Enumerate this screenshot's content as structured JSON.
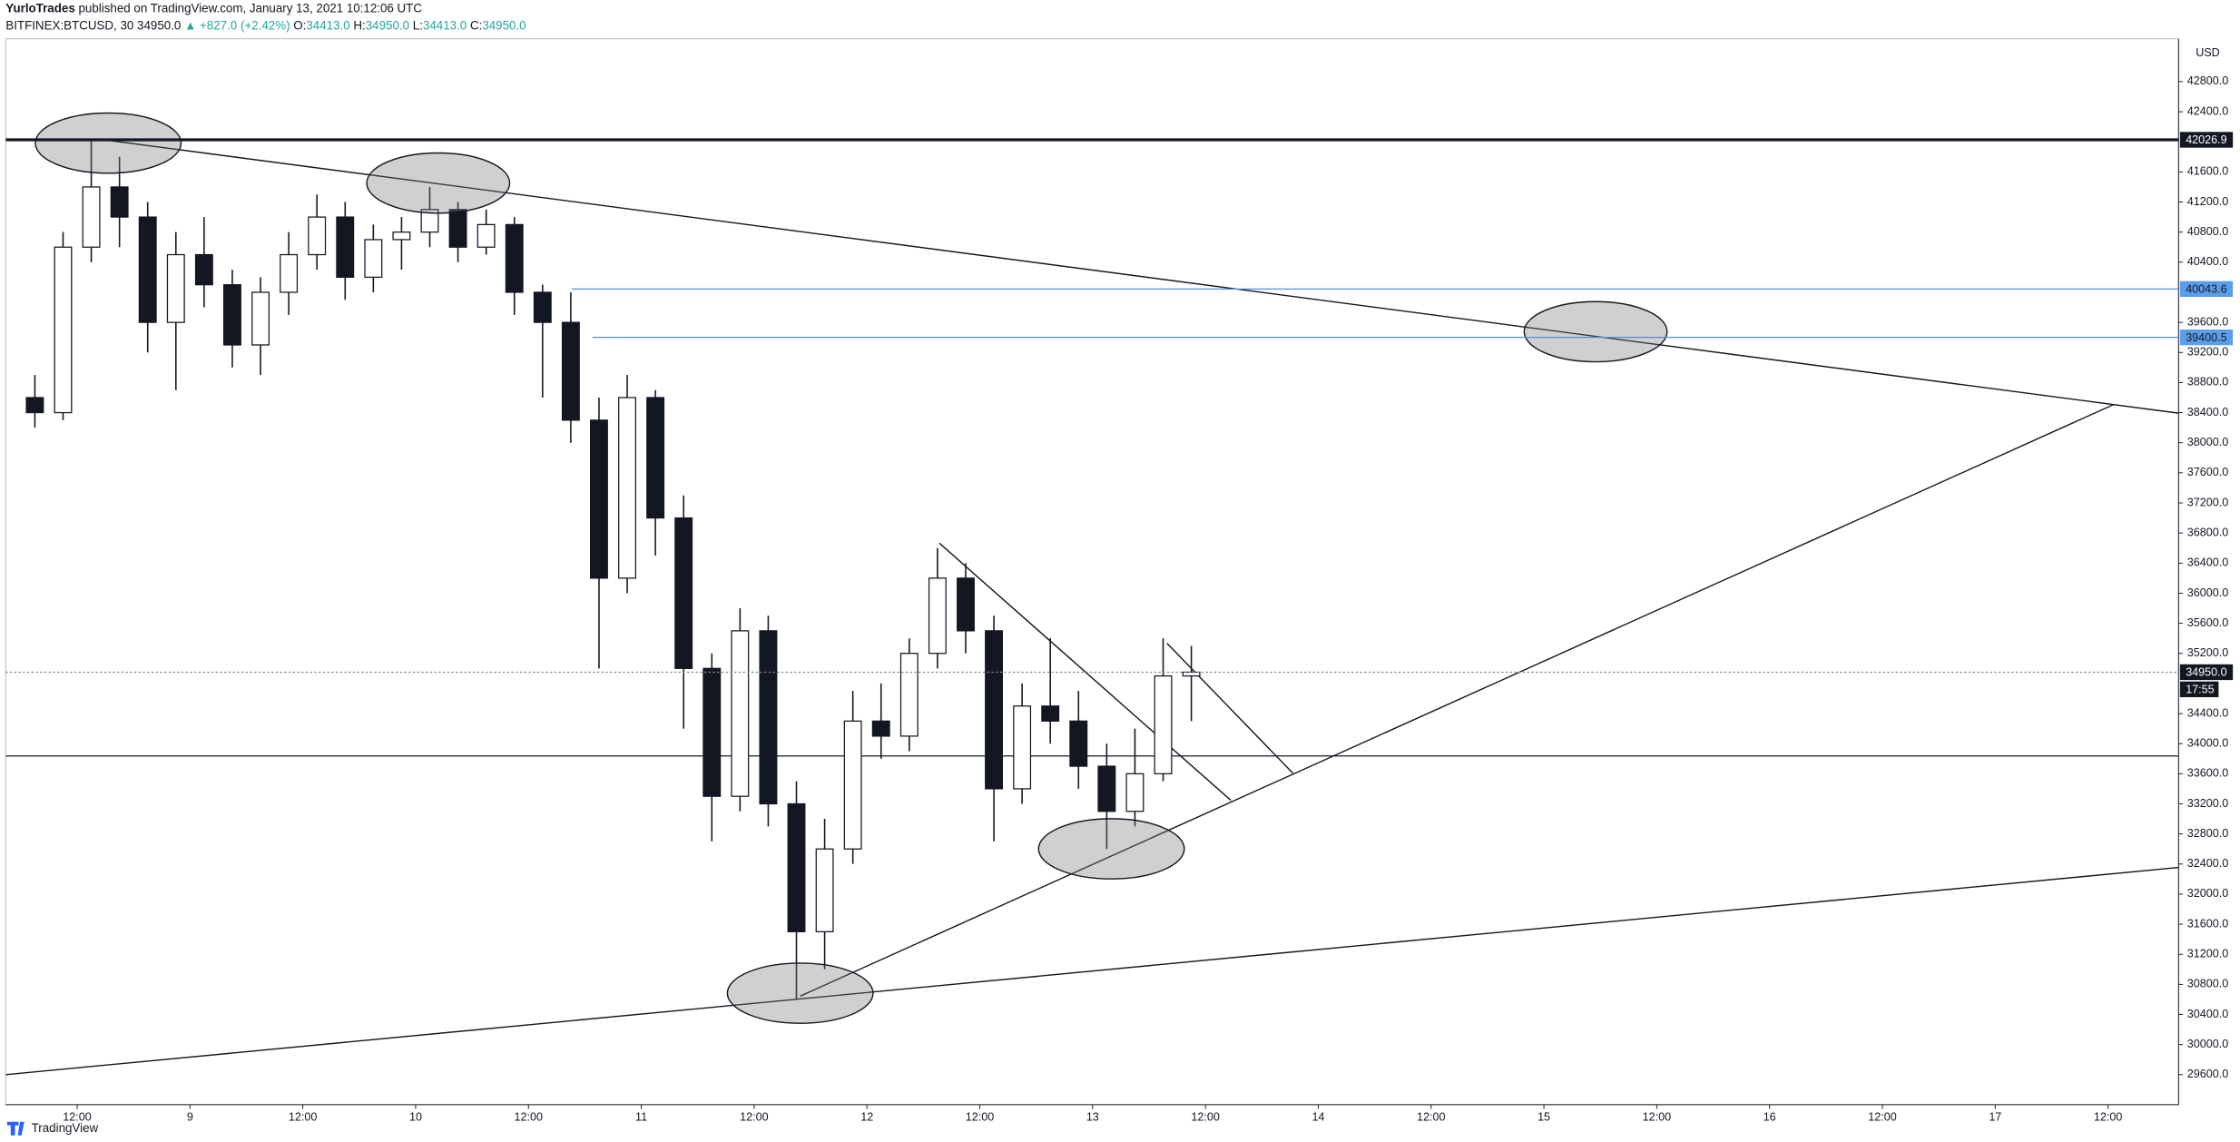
{
  "header": {
    "author": "YurloTrades",
    "published": "published on TradingView.com, January 13, 2021 10:12:06 UTC",
    "symbol": "BITFINEX:BTCUSD, 30",
    "last": "34950.0",
    "change": "▲ +827.0 (+2.42%)",
    "ohlc": [
      "O:",
      "34413.0",
      "H:",
      "34950.0",
      "L:",
      "34413.0",
      "C:",
      "34950.0"
    ]
  },
  "footer": "TradingView",
  "chart_data": {
    "type": "candlestick",
    "currency": "USD",
    "countdown": "17:55",
    "x": [
      7.5,
      10.5,
      13.5,
      16.5,
      19.5,
      22.5,
      25.5,
      28.5,
      31.5,
      34.5,
      37.5,
      40.5,
      43.5,
      46.5,
      49.5,
      52.5,
      55.5,
      58.5,
      61.5,
      64.5,
      67.5,
      70.5,
      73.5,
      76.5,
      79.5,
      82.5,
      85.5,
      88.5,
      91.5,
      94.5,
      97.5,
      100.5,
      103.5,
      106.5,
      109.5,
      112.5,
      115.5,
      118.5,
      121.5,
      124.5,
      127.5,
      130.5
    ],
    "open": [
      38600,
      38400,
      40600,
      41400,
      41000,
      39600,
      40500,
      40100,
      39300,
      40000,
      40500,
      41000,
      40200,
      40700,
      40800,
      41100,
      40600,
      40900,
      40000,
      39600,
      38300,
      36200,
      38600,
      37000,
      35000,
      33300,
      35500,
      33200,
      31500,
      32600,
      34300,
      34100,
      35200,
      36200,
      35500,
      33400,
      34500,
      34300,
      33700,
      33100,
      33600,
      34900
    ],
    "high": [
      38900,
      40800,
      42026,
      41800,
      41200,
      40800,
      41000,
      40300,
      40200,
      40800,
      41300,
      41200,
      40900,
      41000,
      41400,
      41200,
      41100,
      41000,
      40100,
      40000,
      38600,
      38900,
      38700,
      37300,
      35200,
      35800,
      35700,
      33500,
      33000,
      34700,
      34800,
      35400,
      36600,
      36400,
      35700,
      34800,
      35400,
      34700,
      34000,
      34200,
      35400,
      35300
    ],
    "low": [
      38200,
      38300,
      40400,
      40600,
      39200,
      38700,
      39800,
      39000,
      38900,
      39700,
      40300,
      39900,
      40000,
      40300,
      40600,
      40400,
      40500,
      39700,
      38600,
      38000,
      35000,
      36000,
      36500,
      34200,
      32700,
      33100,
      32900,
      30600,
      31000,
      32400,
      33800,
      33900,
      35000,
      35200,
      32700,
      33200,
      34000,
      33400,
      32600,
      32900,
      33500,
      34300
    ],
    "close": [
      38400,
      40600,
      41400,
      41000,
      39600,
      40500,
      40100,
      39300,
      40000,
      40500,
      41000,
      40200,
      40700,
      40800,
      41100,
      40600,
      40900,
      40000,
      39600,
      38300,
      36200,
      38600,
      37000,
      35000,
      33300,
      35500,
      33200,
      31500,
      32600,
      34300,
      34100,
      35200,
      36200,
      35500,
      33400,
      34500,
      34300,
      33700,
      33100,
      33600,
      34900,
      34950
    ],
    "up_color": "#ffffff",
    "down_color": "#131722",
    "outline_color": "#131722",
    "xlim": [
      4.4,
      235.5
    ],
    "ylim": [
      29201,
      43370
    ],
    "xticks": [
      {
        "value": 12,
        "label": "12:00"
      },
      {
        "value": 24,
        "label": "9"
      },
      {
        "value": 36,
        "label": "12:00"
      },
      {
        "value": 48,
        "label": "10"
      },
      {
        "value": 60,
        "label": "12:00"
      },
      {
        "value": 72,
        "label": "11"
      },
      {
        "value": 84,
        "label": "12:00"
      },
      {
        "value": 96,
        "label": "12"
      },
      {
        "value": 108,
        "label": "12:00"
      },
      {
        "value": 120,
        "label": "13"
      },
      {
        "value": 132,
        "label": "12:00"
      },
      {
        "value": 144,
        "label": "14"
      },
      {
        "value": 156,
        "label": "12:00"
      },
      {
        "value": 168,
        "label": "15"
      },
      {
        "value": 180,
        "label": "12:00"
      },
      {
        "value": 192,
        "label": "16"
      },
      {
        "value": 204,
        "label": "12:00"
      },
      {
        "value": 216,
        "label": "17"
      },
      {
        "value": 228,
        "label": "12:00"
      }
    ],
    "yticks": [
      {
        "value": 42800,
        "label": "42800.0"
      },
      {
        "value": 42400,
        "label": "42400.0"
      },
      {
        "value": 41600,
        "label": "41600.0"
      },
      {
        "value": 41200,
        "label": "41200.0"
      },
      {
        "value": 40800,
        "label": "40800.0"
      },
      {
        "value": 40400,
        "label": "40400.0"
      },
      {
        "value": 39600,
        "label": "39600.0"
      },
      {
        "value": 39200,
        "label": "39200.0"
      },
      {
        "value": 38800,
        "label": "38800.0"
      },
      {
        "value": 38400,
        "label": "38400.0"
      },
      {
        "value": 38000,
        "label": "38000.0"
      },
      {
        "value": 37600,
        "label": "37600.0"
      },
      {
        "value": 37200,
        "label": "37200.0"
      },
      {
        "value": 36800,
        "label": "36800.0"
      },
      {
        "value": 36400,
        "label": "36400.0"
      },
      {
        "value": 36000,
        "label": "36000.0"
      },
      {
        "value": 35600,
        "label": "35600.0"
      },
      {
        "value": 35200,
        "label": "35200.0"
      },
      {
        "value": 34400,
        "label": "34400.0"
      },
      {
        "value": 34000,
        "label": "34000.0"
      },
      {
        "value": 33600,
        "label": "33600.0"
      },
      {
        "value": 33200,
        "label": "33200.0"
      },
      {
        "value": 32800,
        "label": "32800.0"
      },
      {
        "value": 32400,
        "label": "32400.0"
      },
      {
        "value": 32000,
        "label": "32000.0"
      },
      {
        "value": 31600,
        "label": "31600.0"
      },
      {
        "value": 31200,
        "label": "31200.0"
      },
      {
        "value": 30800,
        "label": "30800.0"
      },
      {
        "value": 30400,
        "label": "30400.0"
      },
      {
        "value": 30000,
        "label": "30000.0"
      },
      {
        "value": 29600,
        "label": "29600.0"
      }
    ],
    "grid": false,
    "price_lines": [
      {
        "value": 42026.9,
        "color": "#131722",
        "label_bg": "#131722",
        "label_color": "#ffffff",
        "width": 2,
        "style": "solid"
      },
      {
        "value": 40043.6,
        "start": 64.6,
        "color": "#4a90e2",
        "label_bg": "#5b9ee8",
        "label_color": "#131722",
        "width": 0.8,
        "style": "solid"
      },
      {
        "value": 39400.5,
        "start": 66.8,
        "color": "#4a90e2",
        "label_bg": "#5b9ee8",
        "label_color": "#131722",
        "width": 0.8,
        "style": "solid"
      },
      {
        "value": {
          "value": 34950,
          "label": "34950.0"
        },
        "color": "#888888",
        "label_bg": "#131722",
        "label_color": "#ffffff",
        "width": 0.8,
        "style": "dotted"
      }
    ],
    "horizontal_lines": [
      {
        "value": 33836,
        "color": "#131722"
      }
    ],
    "trend_lines": [
      {
        "from": [
          15.2,
          42021
        ],
        "to": [
          235.5,
          38393
        ]
      },
      {
        "from": [
          88.9,
          30644
        ],
        "to": [
          228.6,
          38508
        ]
      },
      {
        "from": [
          4.4,
          29600
        ],
        "to": [
          235.5,
          32354
        ]
      },
      {
        "from": [
          103.7,
          36665
        ],
        "to": [
          134.7,
          33247
        ]
      },
      {
        "from": [
          127.9,
          35336
        ],
        "to": [
          141.3,
          33607
        ]
      }
    ],
    "ellipses": [
      {
        "x": 15.3,
        "y": 41983,
        "rx": 7.75,
        "ry": 400
      },
      {
        "x": 50.4,
        "y": 41452,
        "rx": 7.6,
        "ry": 400
      },
      {
        "x": 173.5,
        "y": 39476,
        "rx": 7.6,
        "ry": 400
      },
      {
        "x": 122.0,
        "y": 32602,
        "rx": 7.75,
        "ry": 400
      },
      {
        "x": 88.9,
        "y": 30683,
        "rx": 7.75,
        "ry": 400
      }
    ]
  }
}
